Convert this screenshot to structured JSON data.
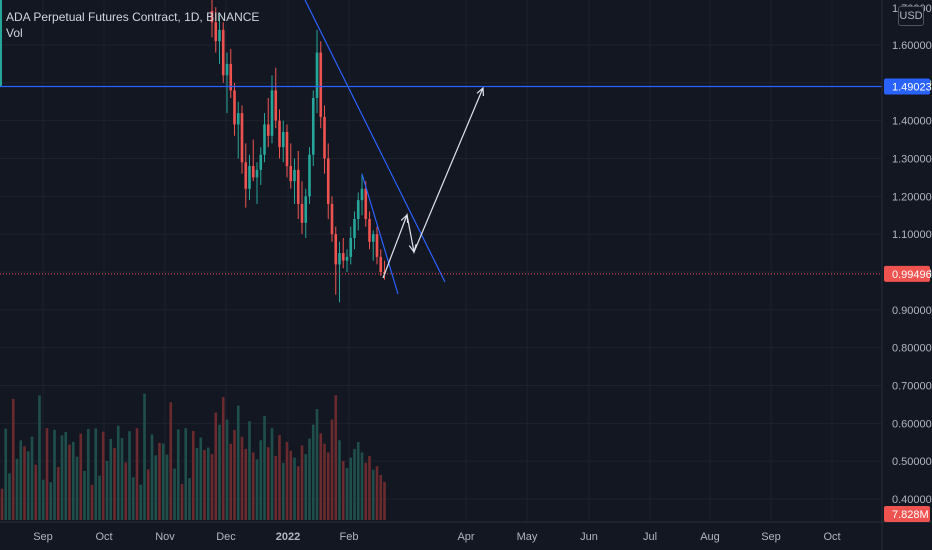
{
  "header": {
    "title": "ADA Perpetual Futures Contract, 1D, BINANCE",
    "volume_label": "Vol",
    "currency": "USD"
  },
  "colors": {
    "background": "#131722",
    "grid": "#1e222d",
    "up": "#26a69a",
    "down": "#ef5350",
    "up_volume": "#1f4f4b",
    "down_volume": "#6b2a2d",
    "trendline": "#2962ff",
    "arrow": "#e0e3eb",
    "axis_text": "#b2b5be"
  },
  "chart_data": {
    "type": "candlestick",
    "x_tick_labels": [
      "Sep",
      "Oct",
      "Nov",
      "Dec",
      "2022",
      "Feb",
      "Apr",
      "May",
      "Jun",
      "Jul",
      "Aug",
      "Sep",
      "Oct"
    ],
    "y_tick_values": [
      1.6,
      1.5,
      1.4,
      1.3,
      1.2,
      1.1,
      1.0,
      0.9,
      0.8,
      0.7,
      0.6,
      0.5,
      0.4
    ],
    "y_tick_labels": [
      "1.60000",
      "1.50000",
      "1.40000",
      "1.30000",
      "1.20000",
      "1.10000",
      "1.00000",
      "0.90000",
      "0.80000",
      "0.70000",
      "0.60000",
      "0.50000",
      "0.40000"
    ],
    "top_partial_label": "1.70000",
    "ylim": [
      0.36,
      1.72
    ],
    "horizontal_line": {
      "value": 1.49023,
      "label": "1.49023"
    },
    "last_price": {
      "value": 0.99496,
      "label": "0.99496"
    },
    "volume_label": "7.828M",
    "candles": [
      [
        1.69,
        1.74,
        1.62,
        1.66
      ],
      [
        1.66,
        1.7,
        1.58,
        1.61
      ],
      [
        1.61,
        1.68,
        1.55,
        1.64
      ],
      [
        1.64,
        1.66,
        1.5,
        1.52
      ],
      [
        1.52,
        1.58,
        1.42,
        1.55
      ],
      [
        1.55,
        1.59,
        1.46,
        1.48
      ],
      [
        1.48,
        1.5,
        1.36,
        1.39
      ],
      [
        1.39,
        1.45,
        1.3,
        1.42
      ],
      [
        1.42,
        1.44,
        1.26,
        1.29
      ],
      [
        1.29,
        1.34,
        1.17,
        1.22
      ],
      [
        1.22,
        1.31,
        1.19,
        1.28
      ],
      [
        1.28,
        1.35,
        1.24,
        1.25
      ],
      [
        1.25,
        1.29,
        1.18,
        1.27
      ],
      [
        1.27,
        1.33,
        1.23,
        1.31
      ],
      [
        1.31,
        1.42,
        1.29,
        1.39
      ],
      [
        1.39,
        1.46,
        1.33,
        1.36
      ],
      [
        1.36,
        1.52,
        1.34,
        1.48
      ],
      [
        1.48,
        1.54,
        1.38,
        1.4
      ],
      [
        1.4,
        1.43,
        1.3,
        1.33
      ],
      [
        1.33,
        1.4,
        1.29,
        1.37
      ],
      [
        1.37,
        1.39,
        1.25,
        1.28
      ],
      [
        1.28,
        1.34,
        1.22,
        1.24
      ],
      [
        1.24,
        1.3,
        1.18,
        1.27
      ],
      [
        1.27,
        1.32,
        1.14,
        1.18
      ],
      [
        1.18,
        1.24,
        1.1,
        1.13
      ],
      [
        1.13,
        1.22,
        1.09,
        1.2
      ],
      [
        1.2,
        1.33,
        1.18,
        1.31
      ],
      [
        1.31,
        1.48,
        1.28,
        1.46
      ],
      [
        1.46,
        1.64,
        1.42,
        1.58
      ],
      [
        1.58,
        1.61,
        1.38,
        1.41
      ],
      [
        1.41,
        1.44,
        1.26,
        1.3
      ],
      [
        1.3,
        1.34,
        1.14,
        1.18
      ],
      [
        1.18,
        1.2,
        1.08,
        1.1
      ],
      [
        1.1,
        1.12,
        0.94,
        1.02
      ],
      [
        1.02,
        1.08,
        0.92,
        1.05
      ],
      [
        1.05,
        1.09,
        1.01,
        1.03
      ],
      [
        1.03,
        1.06,
        1.0,
        1.04
      ],
      [
        1.04,
        1.12,
        1.02,
        1.09
      ],
      [
        1.09,
        1.16,
        1.06,
        1.14
      ],
      [
        1.14,
        1.21,
        1.11,
        1.19
      ],
      [
        1.19,
        1.26,
        1.15,
        1.22
      ],
      [
        1.22,
        1.24,
        1.12,
        1.14
      ],
      [
        1.14,
        1.16,
        1.06,
        1.08
      ],
      [
        1.08,
        1.11,
        1.03,
        1.1
      ],
      [
        1.1,
        1.12,
        1.02,
        1.04
      ],
      [
        1.04,
        1.06,
        0.99,
        1.0
      ],
      [
        1.0,
        1.03,
        0.98,
        0.995
      ]
    ],
    "volumes": [
      0.38,
      0.62,
      0.55,
      0.71,
      0.58,
      0.44,
      0.52,
      0.66,
      0.48,
      0.41,
      0.57,
      0.39,
      0.35,
      0.46,
      0.6,
      0.42,
      0.53,
      0.37,
      0.49,
      0.33,
      0.45,
      0.4,
      0.36,
      0.31,
      0.43,
      0.38,
      0.47,
      0.55,
      0.64,
      0.5,
      0.44,
      0.39,
      0.58,
      0.72,
      0.46,
      0.34,
      0.3,
      0.36,
      0.41,
      0.45,
      0.39,
      0.33,
      0.37,
      0.29,
      0.31,
      0.26,
      0.22
    ]
  }
}
